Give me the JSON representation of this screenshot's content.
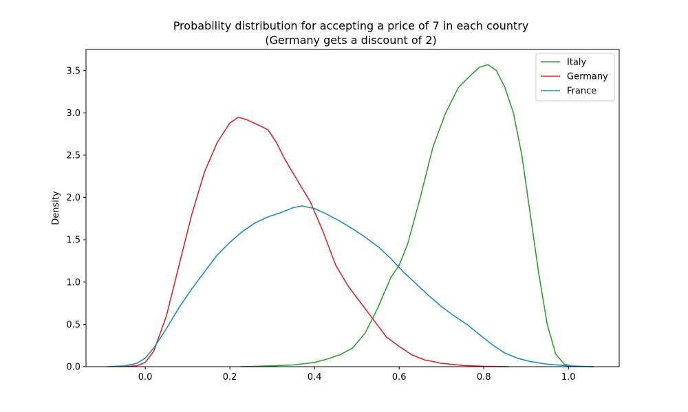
{
  "chart_data": {
    "type": "line",
    "title": "Probability distribution for accepting a price of 7 in each country",
    "subtitle": "(Germany gets a discount of 2)",
    "xlabel": "",
    "ylabel": "Density",
    "xlim": [
      -0.14,
      1.12
    ],
    "ylim": [
      0,
      3.75
    ],
    "xticks": [
      0.0,
      0.2,
      0.4,
      0.6,
      0.8,
      1.0
    ],
    "xtick_labels": [
      "0.0",
      "0.2",
      "0.4",
      "0.6",
      "0.8",
      "1.0"
    ],
    "yticks": [
      0.0,
      0.5,
      1.0,
      1.5,
      2.0,
      2.5,
      3.0,
      3.5
    ],
    "ytick_labels": [
      "0.0",
      "0.5",
      "1.0",
      "1.5",
      "2.0",
      "2.5",
      "3.0",
      "3.5"
    ],
    "grid": false,
    "legend_position": "top-right",
    "series": [
      {
        "name": "Italy",
        "color": "#2ca02c",
        "points": [
          [
            0.225,
            0.0
          ],
          [
            0.3,
            0.01
          ],
          [
            0.35,
            0.02
          ],
          [
            0.4,
            0.05
          ],
          [
            0.43,
            0.09
          ],
          [
            0.46,
            0.14
          ],
          [
            0.49,
            0.22
          ],
          [
            0.52,
            0.4
          ],
          [
            0.55,
            0.7
          ],
          [
            0.58,
            1.05
          ],
          [
            0.6,
            1.2
          ],
          [
            0.62,
            1.45
          ],
          [
            0.65,
            2.0
          ],
          [
            0.68,
            2.6
          ],
          [
            0.71,
            3.0
          ],
          [
            0.74,
            3.3
          ],
          [
            0.77,
            3.45
          ],
          [
            0.79,
            3.54
          ],
          [
            0.81,
            3.57
          ],
          [
            0.83,
            3.5
          ],
          [
            0.85,
            3.3
          ],
          [
            0.87,
            3.0
          ],
          [
            0.89,
            2.5
          ],
          [
            0.91,
            1.8
          ],
          [
            0.93,
            1.1
          ],
          [
            0.95,
            0.5
          ],
          [
            0.97,
            0.15
          ],
          [
            0.99,
            0.03
          ],
          [
            1.01,
            0.005
          ],
          [
            1.06,
            0.0
          ]
        ]
      },
      {
        "name": "Germany",
        "color": "#d62728",
        "points": [
          [
            -0.06,
            0.0
          ],
          [
            -0.02,
            0.01
          ],
          [
            0.0,
            0.05
          ],
          [
            0.02,
            0.18
          ],
          [
            0.05,
            0.6
          ],
          [
            0.08,
            1.2
          ],
          [
            0.11,
            1.8
          ],
          [
            0.14,
            2.3
          ],
          [
            0.17,
            2.65
          ],
          [
            0.2,
            2.88
          ],
          [
            0.22,
            2.95
          ],
          [
            0.24,
            2.92
          ],
          [
            0.27,
            2.85
          ],
          [
            0.29,
            2.8
          ],
          [
            0.31,
            2.65
          ],
          [
            0.33,
            2.45
          ],
          [
            0.36,
            2.2
          ],
          [
            0.39,
            1.95
          ],
          [
            0.42,
            1.6
          ],
          [
            0.45,
            1.2
          ],
          [
            0.48,
            0.95
          ],
          [
            0.51,
            0.75
          ],
          [
            0.54,
            0.55
          ],
          [
            0.57,
            0.35
          ],
          [
            0.6,
            0.24
          ],
          [
            0.63,
            0.14
          ],
          [
            0.66,
            0.08
          ],
          [
            0.7,
            0.04
          ],
          [
            0.75,
            0.015
          ],
          [
            0.8,
            0.005
          ],
          [
            0.86,
            0.0
          ]
        ]
      },
      {
        "name": "France",
        "color": "#1f8ac4",
        "points": [
          [
            -0.09,
            0.0
          ],
          [
            -0.05,
            0.01
          ],
          [
            -0.02,
            0.04
          ],
          [
            0.0,
            0.1
          ],
          [
            0.02,
            0.22
          ],
          [
            0.05,
            0.45
          ],
          [
            0.08,
            0.7
          ],
          [
            0.11,
            0.92
          ],
          [
            0.14,
            1.12
          ],
          [
            0.17,
            1.32
          ],
          [
            0.2,
            1.47
          ],
          [
            0.23,
            1.6
          ],
          [
            0.26,
            1.7
          ],
          [
            0.29,
            1.77
          ],
          [
            0.32,
            1.82
          ],
          [
            0.35,
            1.88
          ],
          [
            0.37,
            1.9
          ],
          [
            0.4,
            1.87
          ],
          [
            0.43,
            1.8
          ],
          [
            0.46,
            1.72
          ],
          [
            0.49,
            1.63
          ],
          [
            0.52,
            1.53
          ],
          [
            0.55,
            1.42
          ],
          [
            0.58,
            1.28
          ],
          [
            0.61,
            1.12
          ],
          [
            0.64,
            0.98
          ],
          [
            0.67,
            0.84
          ],
          [
            0.7,
            0.71
          ],
          [
            0.73,
            0.6
          ],
          [
            0.76,
            0.5
          ],
          [
            0.79,
            0.38
          ],
          [
            0.82,
            0.26
          ],
          [
            0.85,
            0.16
          ],
          [
            0.88,
            0.1
          ],
          [
            0.91,
            0.06
          ],
          [
            0.95,
            0.03
          ],
          [
            1.0,
            0.01
          ],
          [
            1.06,
            0.0
          ]
        ]
      }
    ]
  }
}
